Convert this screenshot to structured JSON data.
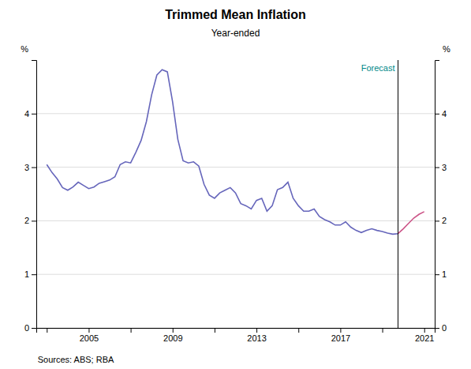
{
  "chart_data": {
    "type": "line",
    "title": "Trimmed Mean Inflation",
    "subtitle": "Year-ended",
    "ylabel": "%",
    "y2label": "%",
    "annotations": [
      {
        "text": "Forecast",
        "color": "#008888"
      },
      {
        "text": "Sources:  ABS; RBA"
      }
    ],
    "vertical_line": {
      "x": 2019.75,
      "color": "#000000"
    },
    "series": [
      {
        "color": "#6666bb",
        "x": [
          2003.0,
          2003.25,
          2003.5,
          2003.75,
          2004.0,
          2004.25,
          2004.5,
          2004.75,
          2005.0,
          2005.25,
          2005.5,
          2005.75,
          2006.0,
          2006.25,
          2006.5,
          2006.75,
          2007.0,
          2007.25,
          2007.5,
          2007.75,
          2008.0,
          2008.25,
          2008.5,
          2008.75,
          2009.0,
          2009.25,
          2009.5,
          2009.75,
          2010.0,
          2010.25,
          2010.5,
          2010.75,
          2011.0,
          2011.25,
          2011.5,
          2011.75,
          2012.0,
          2012.25,
          2012.5,
          2012.75,
          2013.0,
          2013.25,
          2013.5,
          2013.75,
          2014.0,
          2014.25,
          2014.5,
          2014.75,
          2015.0,
          2015.25,
          2015.5,
          2015.75,
          2016.0,
          2016.25,
          2016.5,
          2016.75,
          2017.0,
          2017.25,
          2017.5,
          2017.75,
          2018.0,
          2018.25,
          2018.5,
          2018.75,
          2019.0,
          2019.25,
          2019.5,
          2019.75
        ],
        "values": [
          3.05,
          2.9,
          2.78,
          2.62,
          2.57,
          2.63,
          2.72,
          2.66,
          2.6,
          2.63,
          2.7,
          2.73,
          2.76,
          2.82,
          3.05,
          3.1,
          3.08,
          3.28,
          3.5,
          3.85,
          4.35,
          4.72,
          4.82,
          4.78,
          4.22,
          3.52,
          3.12,
          3.08,
          3.1,
          3.02,
          2.68,
          2.48,
          2.42,
          2.52,
          2.57,
          2.62,
          2.52,
          2.32,
          2.28,
          2.22,
          2.38,
          2.42,
          2.18,
          2.28,
          2.58,
          2.62,
          2.72,
          2.42,
          2.28,
          2.18,
          2.18,
          2.22,
          2.08,
          2.02,
          1.98,
          1.92,
          1.92,
          1.98,
          1.88,
          1.82,
          1.78,
          1.82,
          1.85,
          1.82,
          1.8,
          1.77,
          1.75,
          1.76
        ]
      },
      {
        "color": "#cc5588",
        "x": [
          2019.75,
          2020.0,
          2020.25,
          2020.5,
          2020.75,
          2021.0
        ],
        "values": [
          1.76,
          1.85,
          1.95,
          2.05,
          2.12,
          2.17
        ]
      }
    ],
    "xlim": [
      2002.5,
      2021.5
    ],
    "xticks": [
      {
        "value": 2003,
        "label": null
      },
      2005,
      {
        "value": 2007,
        "label": null
      },
      2009,
      {
        "value": 2011,
        "label": null
      },
      2013,
      {
        "value": 2015,
        "label": null
      },
      2017,
      {
        "value": 2019,
        "label": null
      },
      2021
    ],
    "ylim": [
      0,
      5.0
    ],
    "yticks": [
      0,
      1,
      2,
      3,
      4
    ],
    "y2lim": [
      0,
      5.0
    ],
    "y2ticks": [
      0,
      1,
      2,
      3,
      4
    ],
    "grid": "y"
  }
}
